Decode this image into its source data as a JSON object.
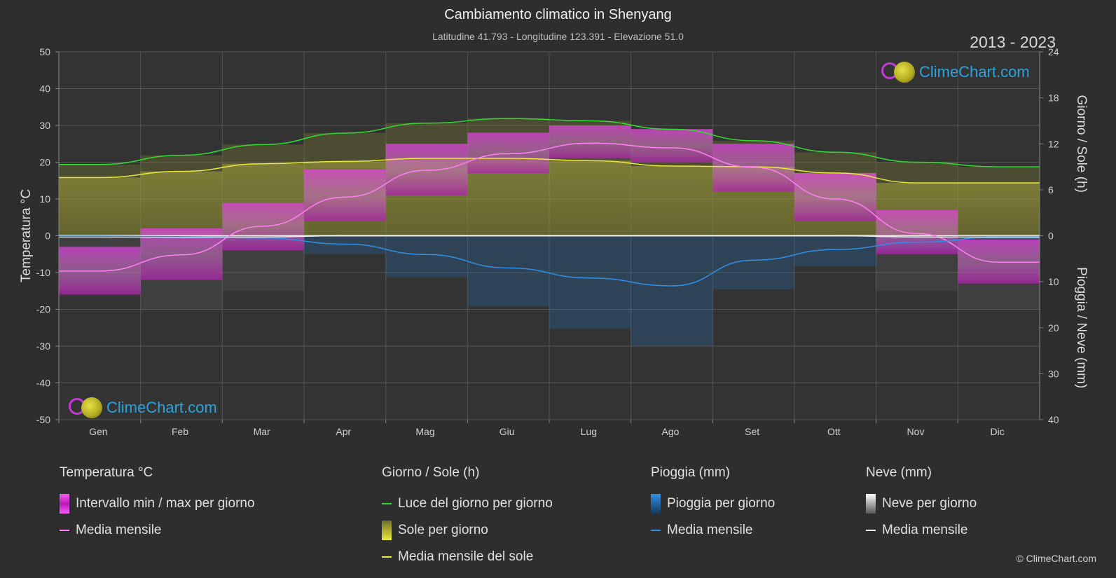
{
  "header": {
    "title": "Cambiamento climatico in Shenyang",
    "subtitle": "Latitudine 41.793 - Longitudine 123.391 - Elevazione 51.0",
    "years": "2013 - 2023"
  },
  "logo_text": "ClimeChart.com",
  "copyright": "© ClimeChart.com",
  "colors": {
    "background": "#2e2e2e",
    "temp_range": "#d62ed6",
    "temp_mean": "#ff7ff5",
    "daylight": "#33dd33",
    "sunshine": "#b8b83a",
    "sun_mean": "#eaea3a",
    "rain": "#1e7fd6",
    "rain_mean": "#2f8fe8",
    "snow": "#9e9e9e",
    "snow_mean": "#ffffff",
    "brand": "#2aa4e0"
  },
  "chart_data": {
    "type": "line",
    "x_categories": [
      "Gen",
      "Feb",
      "Mar",
      "Apr",
      "Mag",
      "Giu",
      "Lug",
      "Ago",
      "Set",
      "Ott",
      "Nov",
      "Dic"
    ],
    "axes": {
      "left": {
        "label": "Temperatura °C",
        "min": -50,
        "max": 50,
        "ticks": [
          50,
          40,
          30,
          20,
          10,
          0,
          -10,
          -20,
          -30,
          -40,
          -50
        ]
      },
      "right_top": {
        "label": "Giorno / Sole (h)",
        "min": 0,
        "max": 24,
        "ticks": [
          24,
          18,
          12,
          6,
          0
        ]
      },
      "right_bottom": {
        "label": "Pioggia / Neve (mm)",
        "min": 0,
        "max": 40,
        "ticks": [
          0,
          10,
          20,
          30,
          40
        ]
      }
    },
    "grid": true,
    "series": [
      {
        "name": "Luce del giorno per giorno",
        "axis": "right_top",
        "values": [
          9.3,
          10.5,
          11.9,
          13.4,
          14.7,
          15.3,
          15.0,
          13.9,
          12.4,
          10.9,
          9.6,
          9.0
        ]
      },
      {
        "name": "Media mensile del sole",
        "axis": "right_top",
        "values": [
          7.6,
          8.4,
          9.4,
          9.7,
          10.1,
          10.1,
          9.8,
          9.1,
          9.0,
          8.2,
          6.9,
          6.9
        ]
      },
      {
        "name": "Media mensile",
        "group": "temperature",
        "axis": "left",
        "values": [
          -9.6,
          -5.2,
          2.6,
          10.5,
          17.8,
          22.3,
          25.2,
          23.9,
          18.6,
          10.0,
          0.6,
          -7.2
        ]
      },
      {
        "name": "Media mensile",
        "group": "rain",
        "axis": "right_bottom",
        "values": [
          0.1,
          0.2,
          0.5,
          1.8,
          4.1,
          7.0,
          9.2,
          10.9,
          5.3,
          3.0,
          1.4,
          0.3
        ]
      },
      {
        "name": "Media mensile",
        "group": "snow",
        "axis": "right_bottom",
        "values": [
          0.3,
          0.4,
          0.3,
          0.0,
          0.0,
          0.0,
          0.0,
          0.0,
          0.0,
          0.0,
          0.3,
          0.4
        ]
      },
      {
        "name": "Intervallo min / max per giorno",
        "axis": "left",
        "max": [
          -3,
          2,
          9,
          18,
          25,
          28,
          30,
          29,
          25,
          17,
          7,
          -1
        ],
        "min": [
          -16,
          -12,
          -4,
          4,
          11,
          17,
          21,
          20,
          12,
          4,
          -5,
          -13
        ]
      },
      {
        "name": "Sole per giorno",
        "axis": "right_top",
        "values": [
          7.6,
          8.4,
          9.4,
          9.7,
          10.1,
          10.1,
          9.8,
          9.1,
          9.0,
          8.2,
          6.9,
          6.9
        ]
      }
    ]
  },
  "legend": {
    "groups": [
      {
        "title": "Temperatura °C",
        "items": [
          {
            "label": "Intervallo min / max per giorno",
            "swatch": "box-magenta"
          },
          {
            "label": "Media mensile",
            "swatch": "line-pink"
          }
        ]
      },
      {
        "title": "Giorno / Sole (h)",
        "items": [
          {
            "label": "Luce del giorno per giorno",
            "swatch": "line-green"
          },
          {
            "label": "Sole per giorno",
            "swatch": "box-yellow"
          },
          {
            "label": "Media mensile del sole",
            "swatch": "line-yellow"
          }
        ]
      },
      {
        "title": "Pioggia (mm)",
        "items": [
          {
            "label": "Pioggia per giorno",
            "swatch": "box-blue"
          },
          {
            "label": "Media mensile",
            "swatch": "line-blue"
          }
        ]
      },
      {
        "title": "Neve (mm)",
        "items": [
          {
            "label": "Neve per giorno",
            "swatch": "box-white"
          },
          {
            "label": "Media mensile",
            "swatch": "line-white"
          }
        ]
      }
    ]
  }
}
